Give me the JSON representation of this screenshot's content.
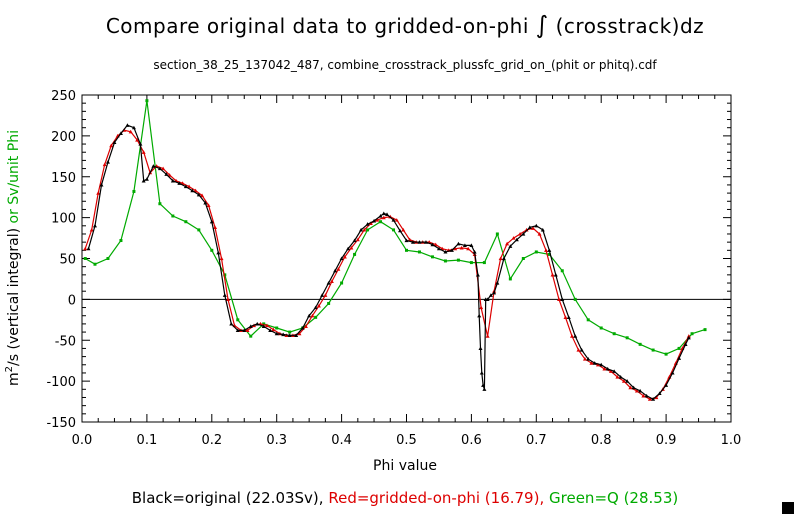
{
  "chart_data": {
    "type": "line",
    "title_main": "Compare original data to gridded-on-phi",
    "title_integral": "∫",
    "title_rest": "(crosstrack)dz",
    "subtitle": "section_38_25_137042_487, combine_crosstrack_plussfc_grid_on_(phit or phitq).cdf",
    "xlabel": "Phi value",
    "ylabel_black_prefix": "m",
    "ylabel_black_sup": "2",
    "ylabel_black_rest": "/s (vertical integral)",
    "ylabel_green": " or Sv/unit Phi",
    "xlim": [
      0.0,
      1.0
    ],
    "ylim": [
      -150,
      250
    ],
    "xticks": [
      0.0,
      0.1,
      0.2,
      0.3,
      0.4,
      0.5,
      0.6,
      0.7,
      0.8,
      0.9,
      1.0
    ],
    "xtick_labels": [
      "0.0",
      "0.1",
      "0.2",
      "0.3",
      "0.4",
      "0.5",
      "0.6",
      "0.7",
      "0.8",
      "0.9",
      "1.0"
    ],
    "yticks": [
      -150,
      -100,
      -50,
      0,
      50,
      100,
      150,
      200,
      250
    ],
    "ytick_labels": [
      "-150",
      "-100",
      "-50",
      "0",
      "50",
      "100",
      "150",
      "200",
      "250"
    ],
    "zero_line": 0,
    "legend": {
      "black": "Black=original (22.03Sv),",
      "red": "Red=gridded-on-phi (16.79),",
      "green": "Green=Q (28.53)"
    },
    "colors": {
      "black": "#000000",
      "red": "#dd0000",
      "green": "#00aa00"
    },
    "series": [
      {
        "name": "original",
        "color": "black",
        "x": [
          0.01,
          0.02,
          0.03,
          0.04,
          0.05,
          0.06,
          0.07,
          0.08,
          0.09,
          0.095,
          0.1,
          0.11,
          0.12,
          0.13,
          0.14,
          0.15,
          0.16,
          0.17,
          0.18,
          0.19,
          0.2,
          0.21,
          0.22,
          0.23,
          0.24,
          0.25,
          0.26,
          0.27,
          0.28,
          0.29,
          0.3,
          0.31,
          0.32,
          0.33,
          0.34,
          0.35,
          0.36,
          0.37,
          0.38,
          0.39,
          0.4,
          0.41,
          0.42,
          0.43,
          0.44,
          0.45,
          0.46,
          0.465,
          0.47,
          0.48,
          0.49,
          0.5,
          0.51,
          0.52,
          0.53,
          0.54,
          0.55,
          0.56,
          0.57,
          0.58,
          0.59,
          0.6,
          0.605,
          0.61,
          0.612,
          0.614,
          0.616,
          0.618,
          0.62,
          0.622,
          0.625,
          0.63,
          0.635,
          0.64,
          0.65,
          0.66,
          0.67,
          0.68,
          0.69,
          0.7,
          0.71,
          0.72,
          0.73,
          0.74,
          0.75,
          0.76,
          0.77,
          0.78,
          0.79,
          0.8,
          0.81,
          0.82,
          0.83,
          0.84,
          0.85,
          0.86,
          0.87,
          0.88,
          0.89,
          0.9,
          0.91,
          0.92,
          0.93,
          0.935
        ],
        "y": [
          62,
          90,
          140,
          168,
          192,
          203,
          213,
          210,
          190,
          145,
          147,
          163,
          160,
          153,
          145,
          142,
          138,
          133,
          128,
          118,
          95,
          57,
          5,
          -30,
          -38,
          -38,
          -33,
          -30,
          -33,
          -38,
          -42,
          -43,
          -44,
          -44,
          -35,
          -20,
          -10,
          5,
          20,
          35,
          50,
          62,
          72,
          85,
          92,
          96,
          102,
          105,
          104,
          97,
          84,
          72,
          70,
          70,
          70,
          67,
          62,
          58,
          60,
          68,
          66,
          66,
          58,
          30,
          -20,
          -60,
          -90,
          -105,
          -110,
          0,
          0,
          5,
          8,
          20,
          50,
          65,
          73,
          80,
          88,
          90,
          85,
          60,
          30,
          0,
          -22,
          -45,
          -62,
          -73,
          -78,
          -80,
          -85,
          -88,
          -95,
          -100,
          -108,
          -112,
          -118,
          -122,
          -115,
          -105,
          -90,
          -72,
          -55,
          -47
        ]
      },
      {
        "name": "gridded-on-phi",
        "color": "red",
        "x": [
          0.005,
          0.015,
          0.025,
          0.035,
          0.045,
          0.055,
          0.065,
          0.075,
          0.085,
          0.095,
          0.105,
          0.115,
          0.125,
          0.135,
          0.145,
          0.155,
          0.165,
          0.175,
          0.185,
          0.195,
          0.205,
          0.215,
          0.225,
          0.235,
          0.245,
          0.255,
          0.265,
          0.275,
          0.285,
          0.295,
          0.305,
          0.315,
          0.325,
          0.335,
          0.345,
          0.355,
          0.365,
          0.375,
          0.385,
          0.395,
          0.405,
          0.415,
          0.425,
          0.435,
          0.445,
          0.455,
          0.465,
          0.475,
          0.485,
          0.495,
          0.505,
          0.515,
          0.525,
          0.535,
          0.545,
          0.555,
          0.565,
          0.575,
          0.585,
          0.595,
          0.605,
          0.615,
          0.625,
          0.635,
          0.645,
          0.655,
          0.665,
          0.675,
          0.685,
          0.695,
          0.705,
          0.715,
          0.725,
          0.735,
          0.745,
          0.755,
          0.765,
          0.775,
          0.785,
          0.795,
          0.805,
          0.815,
          0.825,
          0.835,
          0.845,
          0.855,
          0.865,
          0.875,
          0.885,
          0.895,
          0.905,
          0.915,
          0.925,
          0.935
        ],
        "y": [
          62,
          85,
          130,
          165,
          188,
          200,
          207,
          205,
          195,
          180,
          155,
          163,
          160,
          152,
          145,
          142,
          138,
          133,
          127,
          115,
          88,
          50,
          0,
          -32,
          -38,
          -38,
          -32,
          -30,
          -32,
          -37,
          -42,
          -44,
          -44,
          -42,
          -33,
          -20,
          -8,
          5,
          22,
          37,
          52,
          63,
          73,
          85,
          93,
          97,
          100,
          101,
          97,
          85,
          73,
          70,
          70,
          70,
          67,
          62,
          60,
          62,
          63,
          62,
          55,
          -10,
          -45,
          10,
          50,
          68,
          75,
          80,
          85,
          87,
          80,
          60,
          30,
          0,
          -22,
          -45,
          -62,
          -73,
          -78,
          -80,
          -85,
          -88,
          -95,
          -100,
          -108,
          -112,
          -118,
          -122,
          -120,
          -110,
          -95,
          -78,
          -60,
          -45
        ]
      },
      {
        "name": "Q",
        "color": "green",
        "x": [
          0.005,
          0.02,
          0.04,
          0.06,
          0.08,
          0.1,
          0.12,
          0.14,
          0.16,
          0.18,
          0.2,
          0.22,
          0.24,
          0.26,
          0.28,
          0.3,
          0.32,
          0.34,
          0.36,
          0.38,
          0.4,
          0.42,
          0.44,
          0.46,
          0.48,
          0.5,
          0.52,
          0.54,
          0.56,
          0.58,
          0.6,
          0.62,
          0.64,
          0.66,
          0.68,
          0.7,
          0.72,
          0.74,
          0.76,
          0.78,
          0.8,
          0.82,
          0.84,
          0.86,
          0.88,
          0.9,
          0.92,
          0.94,
          0.96
        ],
        "y": [
          50,
          43,
          50,
          72,
          132,
          243,
          117,
          102,
          95,
          85,
          60,
          30,
          -25,
          -45,
          -30,
          -35,
          -40,
          -35,
          -22,
          -5,
          20,
          55,
          85,
          95,
          85,
          60,
          58,
          52,
          47,
          48,
          45,
          45,
          80,
          25,
          50,
          58,
          55,
          35,
          0,
          -25,
          -35,
          -42,
          -47,
          -55,
          -62,
          -67,
          -60,
          -42,
          -37
        ]
      }
    ],
    "corner_box_color": "#000000"
  }
}
